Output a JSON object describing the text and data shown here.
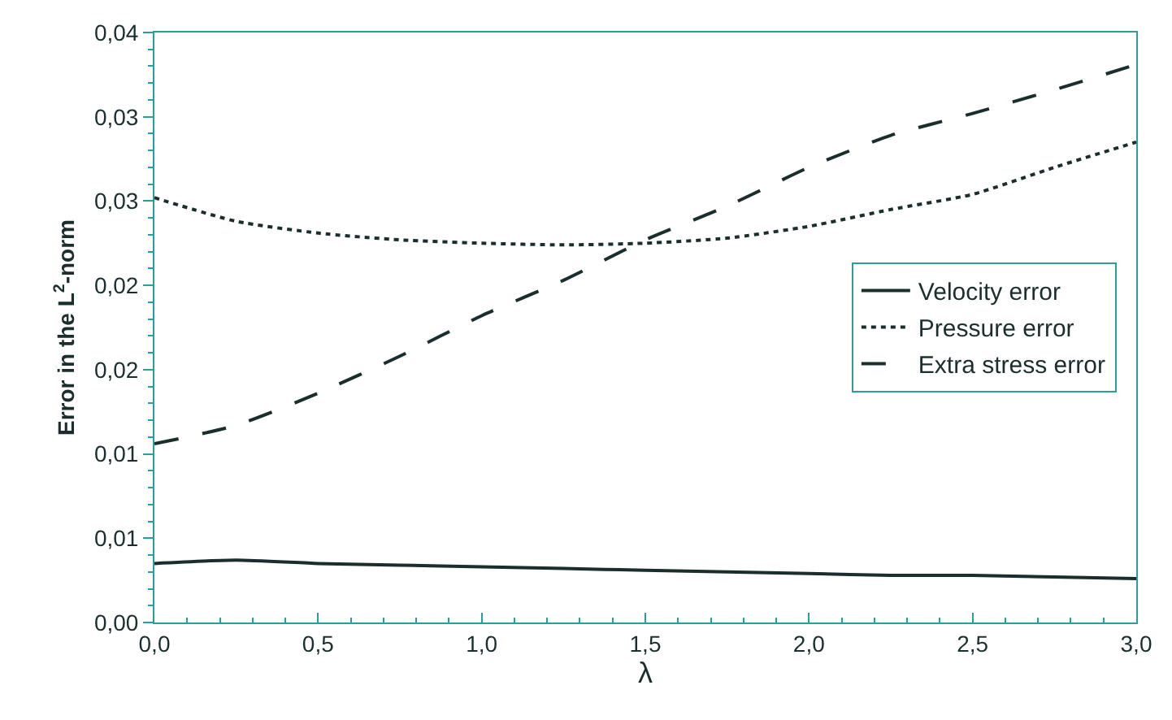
{
  "chart_data": {
    "type": "line",
    "xlabel": "λ",
    "ylabel": "Error in the L$^{2}$-norm",
    "x": [
      0,
      0.25,
      0.5,
      0.75,
      1.0,
      1.25,
      1.5,
      1.75,
      2.0,
      2.25,
      2.5,
      2.75,
      3.0
    ],
    "series": [
      {
        "name": "Velocity error",
        "color": "#1a2e2e",
        "line_style": "solid",
        "values": [
          0.0035,
          0.0037,
          0.0035,
          0.0034,
          0.0033,
          0.0032,
          0.0031,
          0.003,
          0.0029,
          0.0028,
          0.0028,
          0.0027,
          0.0026
        ]
      },
      {
        "name": "Pressure error",
        "color": "#1a2e2e",
        "line_style": "dotted",
        "values": [
          0.0252,
          0.0238,
          0.0231,
          0.0227,
          0.0225,
          0.0224,
          0.0225,
          0.0228,
          0.0235,
          0.0245,
          0.0254,
          0.027,
          0.0285
        ]
      },
      {
        "name": "Extra stress error",
        "color": "#1a2e2e",
        "line_style": "dashed",
        "values": [
          0.0106,
          0.0117,
          0.0136,
          0.0158,
          0.0182,
          0.0203,
          0.0227,
          0.0247,
          0.027,
          0.0289,
          0.0302,
          0.0316,
          0.0331
        ]
      }
    ],
    "xlim": [
      0,
      3
    ],
    "xticks": [
      {
        "value": 0,
        "label": "0,0"
      },
      {
        "value": 0.5,
        "label": "0,5"
      },
      {
        "value": 1,
        "label": "1,0"
      },
      {
        "value": 1.5,
        "label": "1,5"
      },
      {
        "value": 2,
        "label": "2,0"
      },
      {
        "value": 2.5,
        "label": "2,5"
      },
      {
        "value": 3,
        "label": "3,0"
      }
    ],
    "ylim": [
      0,
      0.035
    ],
    "yticks": [
      {
        "value": 0,
        "label": "0,00"
      },
      {
        "value": 0.005,
        "label": "0,01"
      },
      {
        "value": 0.01,
        "label": "0,01"
      },
      {
        "value": 0.015,
        "label": "0,02"
      },
      {
        "value": 0.02,
        "label": "0,02"
      },
      {
        "value": 0.025,
        "label": "0,03"
      },
      {
        "value": 0.03,
        "label": "0,03"
      },
      {
        "value": 0.035,
        "label": "0,04"
      }
    ],
    "grid": false,
    "legend": "right",
    "marker": "none"
  }
}
